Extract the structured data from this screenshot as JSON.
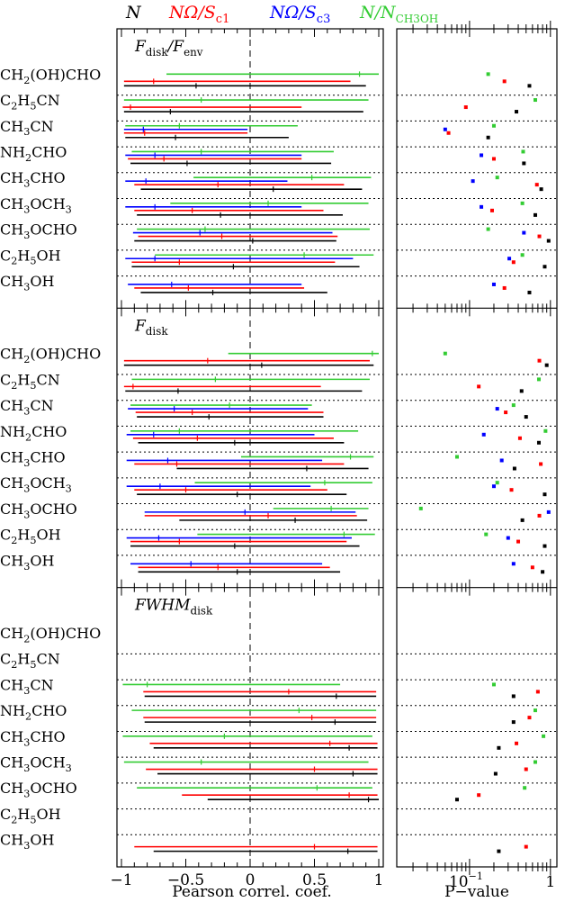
{
  "legend": {
    "n": "N",
    "nomega_c1": "NΩ/S",
    "nomega_c1_sub": "c1",
    "nomega_c3": "NΩ/S",
    "nomega_c3_sub": "c3",
    "n_ratio": "N/N",
    "n_ratio_sub": "CH3OH"
  },
  "colors": {
    "N": "#000000",
    "c1": "#ff0000",
    "c3": "#0000ff",
    "ratio": "#33cc33"
  },
  "molecules": [
    {
      "base": "CH",
      "sub": "2",
      "rest": "(OH)CHO"
    },
    {
      "base": "C",
      "sub": "2",
      "rest": "H",
      "sub2": "5",
      "rest2": "CN"
    },
    {
      "base": "CH",
      "sub": "3",
      "rest": "CN"
    },
    {
      "base": "NH",
      "sub": "2",
      "rest": "CHO"
    },
    {
      "base": "CH",
      "sub": "3",
      "rest": "CHO"
    },
    {
      "base": "CH",
      "sub": "3",
      "rest": "OCH",
      "sub2": "3",
      "rest2": ""
    },
    {
      "base": "CH",
      "sub": "3",
      "rest": "OCHO"
    },
    {
      "base": "C",
      "sub": "2",
      "rest": "H",
      "sub2": "5",
      "rest2": "OH"
    },
    {
      "base": "CH",
      "sub": "3",
      "rest": "OH"
    }
  ],
  "chart_data": {
    "type": "scatter",
    "description_axes": {
      "left_xlabel": "Pearson correl. coef.",
      "left_xlim": [
        -1,
        1
      ],
      "left_xticks": [
        "−1",
        "−0.5",
        "0",
        "0.5",
        "1"
      ],
      "right_xlabel": "P−value",
      "right_xscale": "log",
      "right_xticks": [
        "10",
        "1"
      ],
      "right_xtick_exp": "−1"
    },
    "panels": [
      {
        "title": "F",
        "title_sub": "disk",
        "title_tail": "/F",
        "title_tail_sub": "env",
        "rows": [
          {
            "ratio": {
              "c": 0.85,
              "lo": -0.65,
              "hi": 1.0
            },
            "c1": {
              "c": -0.75,
              "lo": -0.98,
              "hi": 0.78
            },
            "N": {
              "c": -0.42,
              "lo": -0.98,
              "hi": 0.9
            },
            "p": {
              "ratio": 0.17,
              "c1": 0.27,
              "N": 0.55
            }
          },
          {
            "ratio": {
              "c": -0.38,
              "lo": -0.98,
              "hi": 0.92
            },
            "c1": {
              "c": -0.93,
              "lo": -0.99,
              "hi": 0.4
            },
            "N": {
              "c": -0.62,
              "lo": -0.98,
              "hi": 0.88
            },
            "p": {
              "ratio": 0.65,
              "c1": 0.09,
              "N": 0.38
            }
          },
          {
            "ratio": {
              "c": -0.55,
              "lo": -0.97,
              "hi": 0.37
            },
            "c3": {
              "c": -0.83,
              "lo": -0.98,
              "hi": -0.02
            },
            "c1": {
              "c": -0.82,
              "lo": -0.98,
              "hi": -0.02
            },
            "N": {
              "c": -0.58,
              "lo": -0.97,
              "hi": 0.3
            },
            "p": {
              "ratio": 0.2,
              "c3": 0.05,
              "c1": 0.055,
              "N": 0.17
            }
          },
          {
            "ratio": {
              "c": -0.38,
              "lo": -0.92,
              "hi": 0.65
            },
            "c3": {
              "c": -0.74,
              "lo": -0.97,
              "hi": 0.4
            },
            "c1": {
              "c": -0.67,
              "lo": -0.95,
              "hi": 0.4
            },
            "N": {
              "c": -0.49,
              "lo": -0.93,
              "hi": 0.63
            },
            "p": {
              "ratio": 0.46,
              "c3": 0.14,
              "c1": 0.2,
              "N": 0.47
            }
          },
          {
            "ratio": {
              "c": 0.48,
              "lo": -0.44,
              "hi": 0.94
            },
            "c3": {
              "c": -0.81,
              "lo": -0.97,
              "hi": 0.29
            },
            "c1": {
              "c": -0.25,
              "lo": -0.9,
              "hi": 0.73
            },
            "N": {
              "c": 0.18,
              "lo": -0.85,
              "hi": 0.87
            },
            "p": {
              "ratio": 0.22,
              "c3": 0.11,
              "c1": 0.68,
              "N": 0.77
            }
          },
          {
            "ratio": {
              "c": 0.14,
              "lo": -0.62,
              "hi": 0.92
            },
            "c3": {
              "c": -0.74,
              "lo": -0.97,
              "hi": 0.4
            },
            "c1": {
              "c": -0.45,
              "lo": -0.9,
              "hi": 0.57
            },
            "N": {
              "c": -0.23,
              "lo": -0.88,
              "hi": 0.72
            },
            "p": {
              "ratio": 0.45,
              "c3": 0.14,
              "c1": 0.19,
              "N": 0.65
            }
          },
          {
            "ratio": {
              "c": -0.35,
              "lo": -0.88,
              "hi": 0.93
            },
            "c3": {
              "c": -0.39,
              "lo": -0.91,
              "hi": 0.64
            },
            "c1": {
              "c": -0.22,
              "lo": -0.87,
              "hi": 0.68
            },
            "N": {
              "c": 0.02,
              "lo": -0.9,
              "hi": 0.67
            },
            "p": {
              "ratio": 0.17,
              "c3": 0.47,
              "c1": 0.73,
              "N": 0.95
            }
          },
          {
            "ratio": {
              "c": 0.42,
              "lo": -0.74,
              "hi": 0.96
            },
            "c3": {
              "c": -0.74,
              "lo": -0.97,
              "hi": 0.8
            },
            "c1": {
              "c": -0.55,
              "lo": -0.92,
              "hi": 0.66
            },
            "N": {
              "c": -0.13,
              "lo": -0.92,
              "hi": 0.85
            },
            "p": {
              "ratio": 0.45,
              "c3": 0.31,
              "c1": 0.35,
              "N": 0.85
            }
          },
          {
            "c3": {
              "c": -0.61,
              "lo": -0.95,
              "hi": 0.4
            },
            "c1": {
              "c": -0.48,
              "lo": -0.9,
              "hi": 0.42
            },
            "N": {
              "c": -0.29,
              "lo": -0.85,
              "hi": 0.6
            },
            "p": {
              "c3": 0.2,
              "c1": 0.27,
              "N": 0.55
            }
          }
        ]
      },
      {
        "title": "F",
        "title_sub": "disk",
        "title_tail": "",
        "title_tail_sub": "",
        "rows": [
          {
            "ratio": {
              "c": 0.95,
              "lo": -0.17,
              "hi": 1.0
            },
            "c1": {
              "c": -0.33,
              "lo": -0.98,
              "hi": 0.93
            },
            "N": {
              "c": 0.09,
              "lo": -0.98,
              "hi": 0.96
            },
            "p": {
              "ratio": 0.05,
              "c1": 0.73,
              "N": 0.9
            }
          },
          {
            "ratio": {
              "c": -0.27,
              "lo": -0.92,
              "hi": 0.93
            },
            "c1": {
              "c": -0.91,
              "lo": -0.98,
              "hi": 0.55
            },
            "N": {
              "c": -0.56,
              "lo": -0.97,
              "hi": 0.87
            },
            "p": {
              "ratio": 0.72,
              "c1": 0.13,
              "N": 0.44
            }
          },
          {
            "ratio": {
              "c": -0.16,
              "lo": -0.93,
              "hi": 0.48
            },
            "c3": {
              "c": -0.59,
              "lo": -0.95,
              "hi": 0.45
            },
            "c1": {
              "c": -0.45,
              "lo": -0.89,
              "hi": 0.57
            },
            "N": {
              "c": -0.32,
              "lo": -0.88,
              "hi": 0.57
            },
            "p": {
              "ratio": 0.35,
              "c3": 0.22,
              "c1": 0.28,
              "N": 0.5
            }
          },
          {
            "ratio": {
              "c": -0.55,
              "lo": -0.93,
              "hi": 0.84
            },
            "c3": {
              "c": -0.75,
              "lo": -0.96,
              "hi": 0.5
            },
            "c1": {
              "c": -0.41,
              "lo": -0.91,
              "hi": 0.65
            },
            "N": {
              "c": -0.12,
              "lo": -0.87,
              "hi": 0.73
            },
            "p": {
              "ratio": 0.87,
              "c3": 0.15,
              "c1": 0.42,
              "N": 0.72
            }
          },
          {
            "ratio": {
              "c": 0.78,
              "lo": -0.07,
              "hi": 0.96
            },
            "c3": {
              "c": -0.64,
              "lo": -0.96,
              "hi": 0.56
            },
            "c1": {
              "c": -0.57,
              "lo": -0.9,
              "hi": 0.73
            },
            "N": {
              "c": 0.44,
              "lo": -0.57,
              "hi": 0.92
            },
            "p": {
              "ratio": 0.07,
              "c3": 0.25,
              "c1": 0.76,
              "N": 0.36
            }
          },
          {
            "ratio": {
              "c": 0.58,
              "lo": -0.43,
              "hi": 0.95
            },
            "c3": {
              "c": -0.7,
              "lo": -0.96,
              "hi": 0.47
            },
            "c1": {
              "c": -0.5,
              "lo": -0.9,
              "hi": 0.6
            },
            "N": {
              "c": -0.1,
              "lo": -0.88,
              "hi": 0.75
            },
            "p": {
              "ratio": 0.22,
              "c3": 0.2,
              "c1": 0.33,
              "N": 0.85
            }
          },
          {
            "ratio": {
              "c": 0.63,
              "lo": 0.18,
              "hi": 0.92
            },
            "c3": {
              "c": -0.04,
              "lo": -0.82,
              "hi": 0.82
            },
            "c1": {
              "c": 0.14,
              "lo": -0.82,
              "hi": 0.83
            },
            "N": {
              "c": 0.35,
              "lo": -0.55,
              "hi": 0.91
            },
            "p": {
              "ratio": 0.025,
              "c3": 0.95,
              "c1": 0.73,
              "N": 0.45
            }
          },
          {
            "ratio": {
              "c": 0.73,
              "lo": -0.41,
              "hi": 0.97
            },
            "c3": {
              "c": -0.71,
              "lo": -0.96,
              "hi": 0.79
            },
            "c1": {
              "c": -0.55,
              "lo": -0.93,
              "hi": 0.75
            },
            "N": {
              "c": -0.12,
              "lo": -0.93,
              "hi": 0.85
            },
            "p": {
              "ratio": 0.16,
              "c3": 0.3,
              "c1": 0.4,
              "N": 0.85
            }
          },
          {
            "c3": {
              "c": -0.46,
              "lo": -0.93,
              "hi": 0.56
            },
            "c1": {
              "c": -0.25,
              "lo": -0.87,
              "hi": 0.62
            },
            "N": {
              "c": -0.1,
              "lo": -0.87,
              "hi": 0.7
            },
            "p": {
              "c3": 0.35,
              "c1": 0.6,
              "N": 0.8
            }
          }
        ]
      },
      {
        "title": "FWHM",
        "title_sub": "disk",
        "title_tail": "",
        "title_tail_sub": "",
        "rows": [
          {},
          {},
          {
            "ratio": {
              "c": -0.8,
              "lo": -0.99,
              "hi": 0.7
            },
            "c1": {
              "c": 0.3,
              "lo": -0.83,
              "hi": 0.98
            },
            "N": {
              "c": 0.67,
              "lo": -0.82,
              "hi": 0.98
            },
            "p": {
              "ratio": 0.2,
              "c1": 0.7,
              "N": 0.35
            }
          },
          {
            "ratio": {
              "c": 0.38,
              "lo": -0.92,
              "hi": 0.98
            },
            "c1": {
              "c": 0.48,
              "lo": -0.83,
              "hi": 0.98
            },
            "N": {
              "c": 0.66,
              "lo": -0.82,
              "hi": 0.98
            },
            "p": {
              "ratio": 0.65,
              "c1": 0.55,
              "N": 0.35
            }
          },
          {
            "ratio": {
              "c": -0.2,
              "lo": -0.99,
              "hi": 0.95
            },
            "c1": {
              "c": 0.62,
              "lo": -0.78,
              "hi": 0.99
            },
            "N": {
              "c": 0.77,
              "lo": -0.75,
              "hi": 0.99
            },
            "p": {
              "ratio": 0.82,
              "c1": 0.38,
              "N": 0.23
            }
          },
          {
            "ratio": {
              "c": -0.38,
              "lo": -0.98,
              "hi": 0.92
            },
            "c1": {
              "c": 0.5,
              "lo": -0.81,
              "hi": 0.99
            },
            "N": {
              "c": 0.8,
              "lo": -0.72,
              "hi": 0.99
            },
            "p": {
              "ratio": 0.65,
              "c1": 0.5,
              "N": 0.21
            }
          },
          {
            "ratio": {
              "c": 0.52,
              "lo": -0.88,
              "hi": 0.95
            },
            "c1": {
              "c": 0.77,
              "lo": -0.53,
              "hi": 0.99
            },
            "N": {
              "c": 0.92,
              "lo": -0.33,
              "hi": 1.0
            },
            "p": {
              "ratio": 0.48,
              "c1": 0.13,
              "N": 0.07
            }
          },
          {},
          {
            "c1": {
              "c": 0.5,
              "lo": -0.9,
              "hi": 0.99
            },
            "N": {
              "c": 0.76,
              "lo": -0.75,
              "hi": 0.99
            },
            "p": {
              "c1": 0.5,
              "N": 0.23
            }
          }
        ]
      }
    ]
  }
}
